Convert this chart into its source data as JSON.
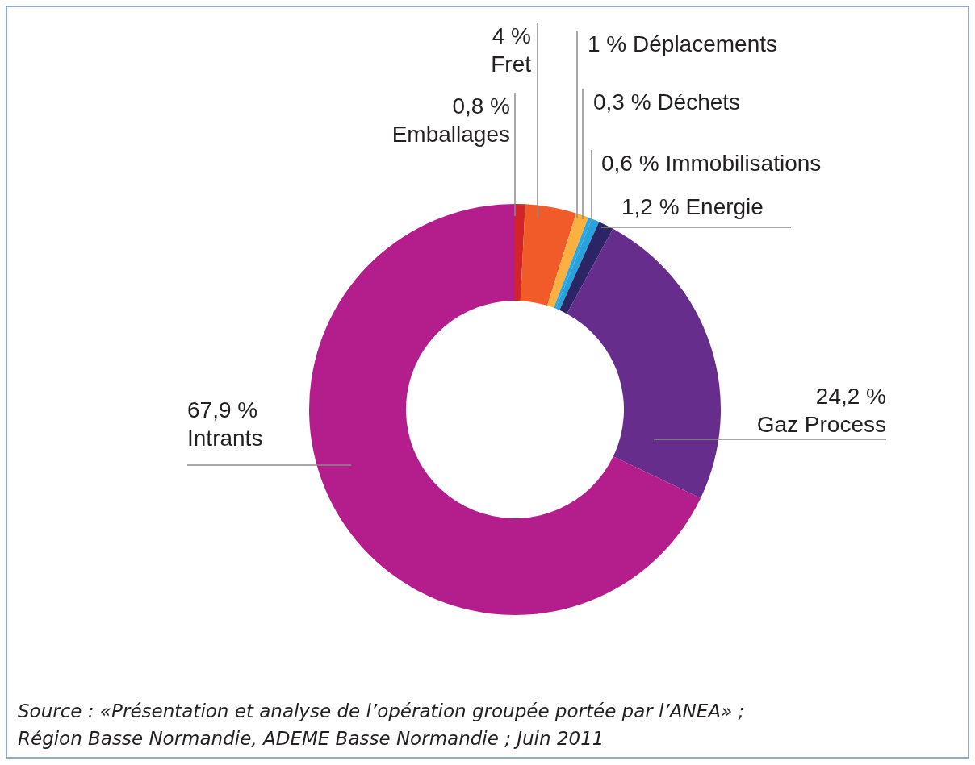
{
  "chart_data": {
    "type": "donut",
    "categories": [
      "Emballages",
      "Fret",
      "Déplacements",
      "Déchets",
      "Immobilisations",
      "Energie",
      "Gaz Process",
      "Intrants"
    ],
    "values": [
      0.8,
      4,
      1,
      0.3,
      0.6,
      1.2,
      24.2,
      67.9
    ],
    "value_labels": [
      "0,8 %",
      "4 %",
      "1 %",
      "0,3 %",
      "0,6 %",
      "1,2 %",
      "24,2 %",
      "67,9 %"
    ],
    "colors": [
      "#d2232a",
      "#f15a29",
      "#fbb040",
      "#2aa9e0",
      "#27a2dc",
      "#2b2565",
      "#662d8c",
      "#b41e8c"
    ],
    "annotations": [
      "Source : «Présentation et analyse de l’opération groupée portée par l’ANEA» ; Région Basse Normandie, ADEME Basse Normandie ; Juin 2011"
    ]
  }
}
